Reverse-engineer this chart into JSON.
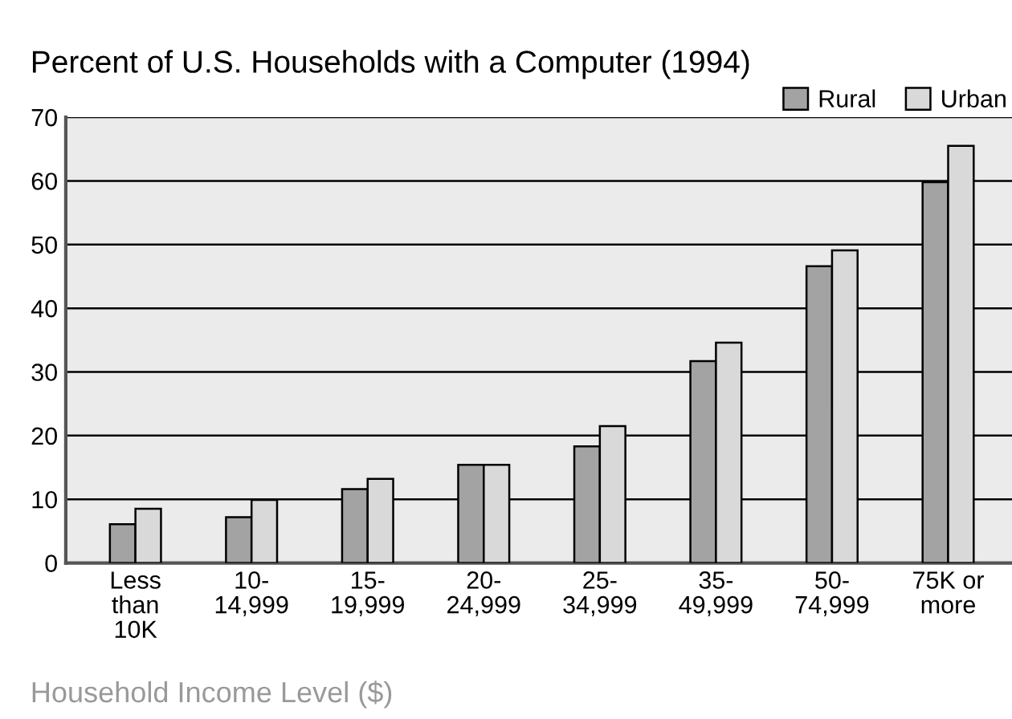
{
  "chart_data": {
    "type": "bar",
    "title": "Percent of U.S. Households with a Computer (1994)",
    "xlabel": "Household Income Level ($)",
    "categories": [
      "Less\nthan\n10K",
      "10-\n14,999",
      "15-\n19,999",
      "20-\n24,999",
      "25-\n34,999",
      "35-\n49,999",
      "50-\n74,999",
      "75K or\nmore"
    ],
    "series": [
      {
        "name": "Rural",
        "color": "#a3a3a3",
        "values": [
          6.1,
          7.2,
          11.6,
          15.4,
          18.3,
          31.7,
          46.6,
          59.8
        ]
      },
      {
        "name": "Urban",
        "color": "#d9d9d9",
        "values": [
          8.5,
          9.9,
          13.2,
          15.4,
          21.5,
          34.6,
          49.1,
          65.5
        ]
      }
    ],
    "ylim": [
      0,
      70
    ],
    "yticks": [
      0,
      10,
      20,
      30,
      40,
      50,
      60,
      70
    ],
    "grid": "y",
    "legend": "top right"
  }
}
